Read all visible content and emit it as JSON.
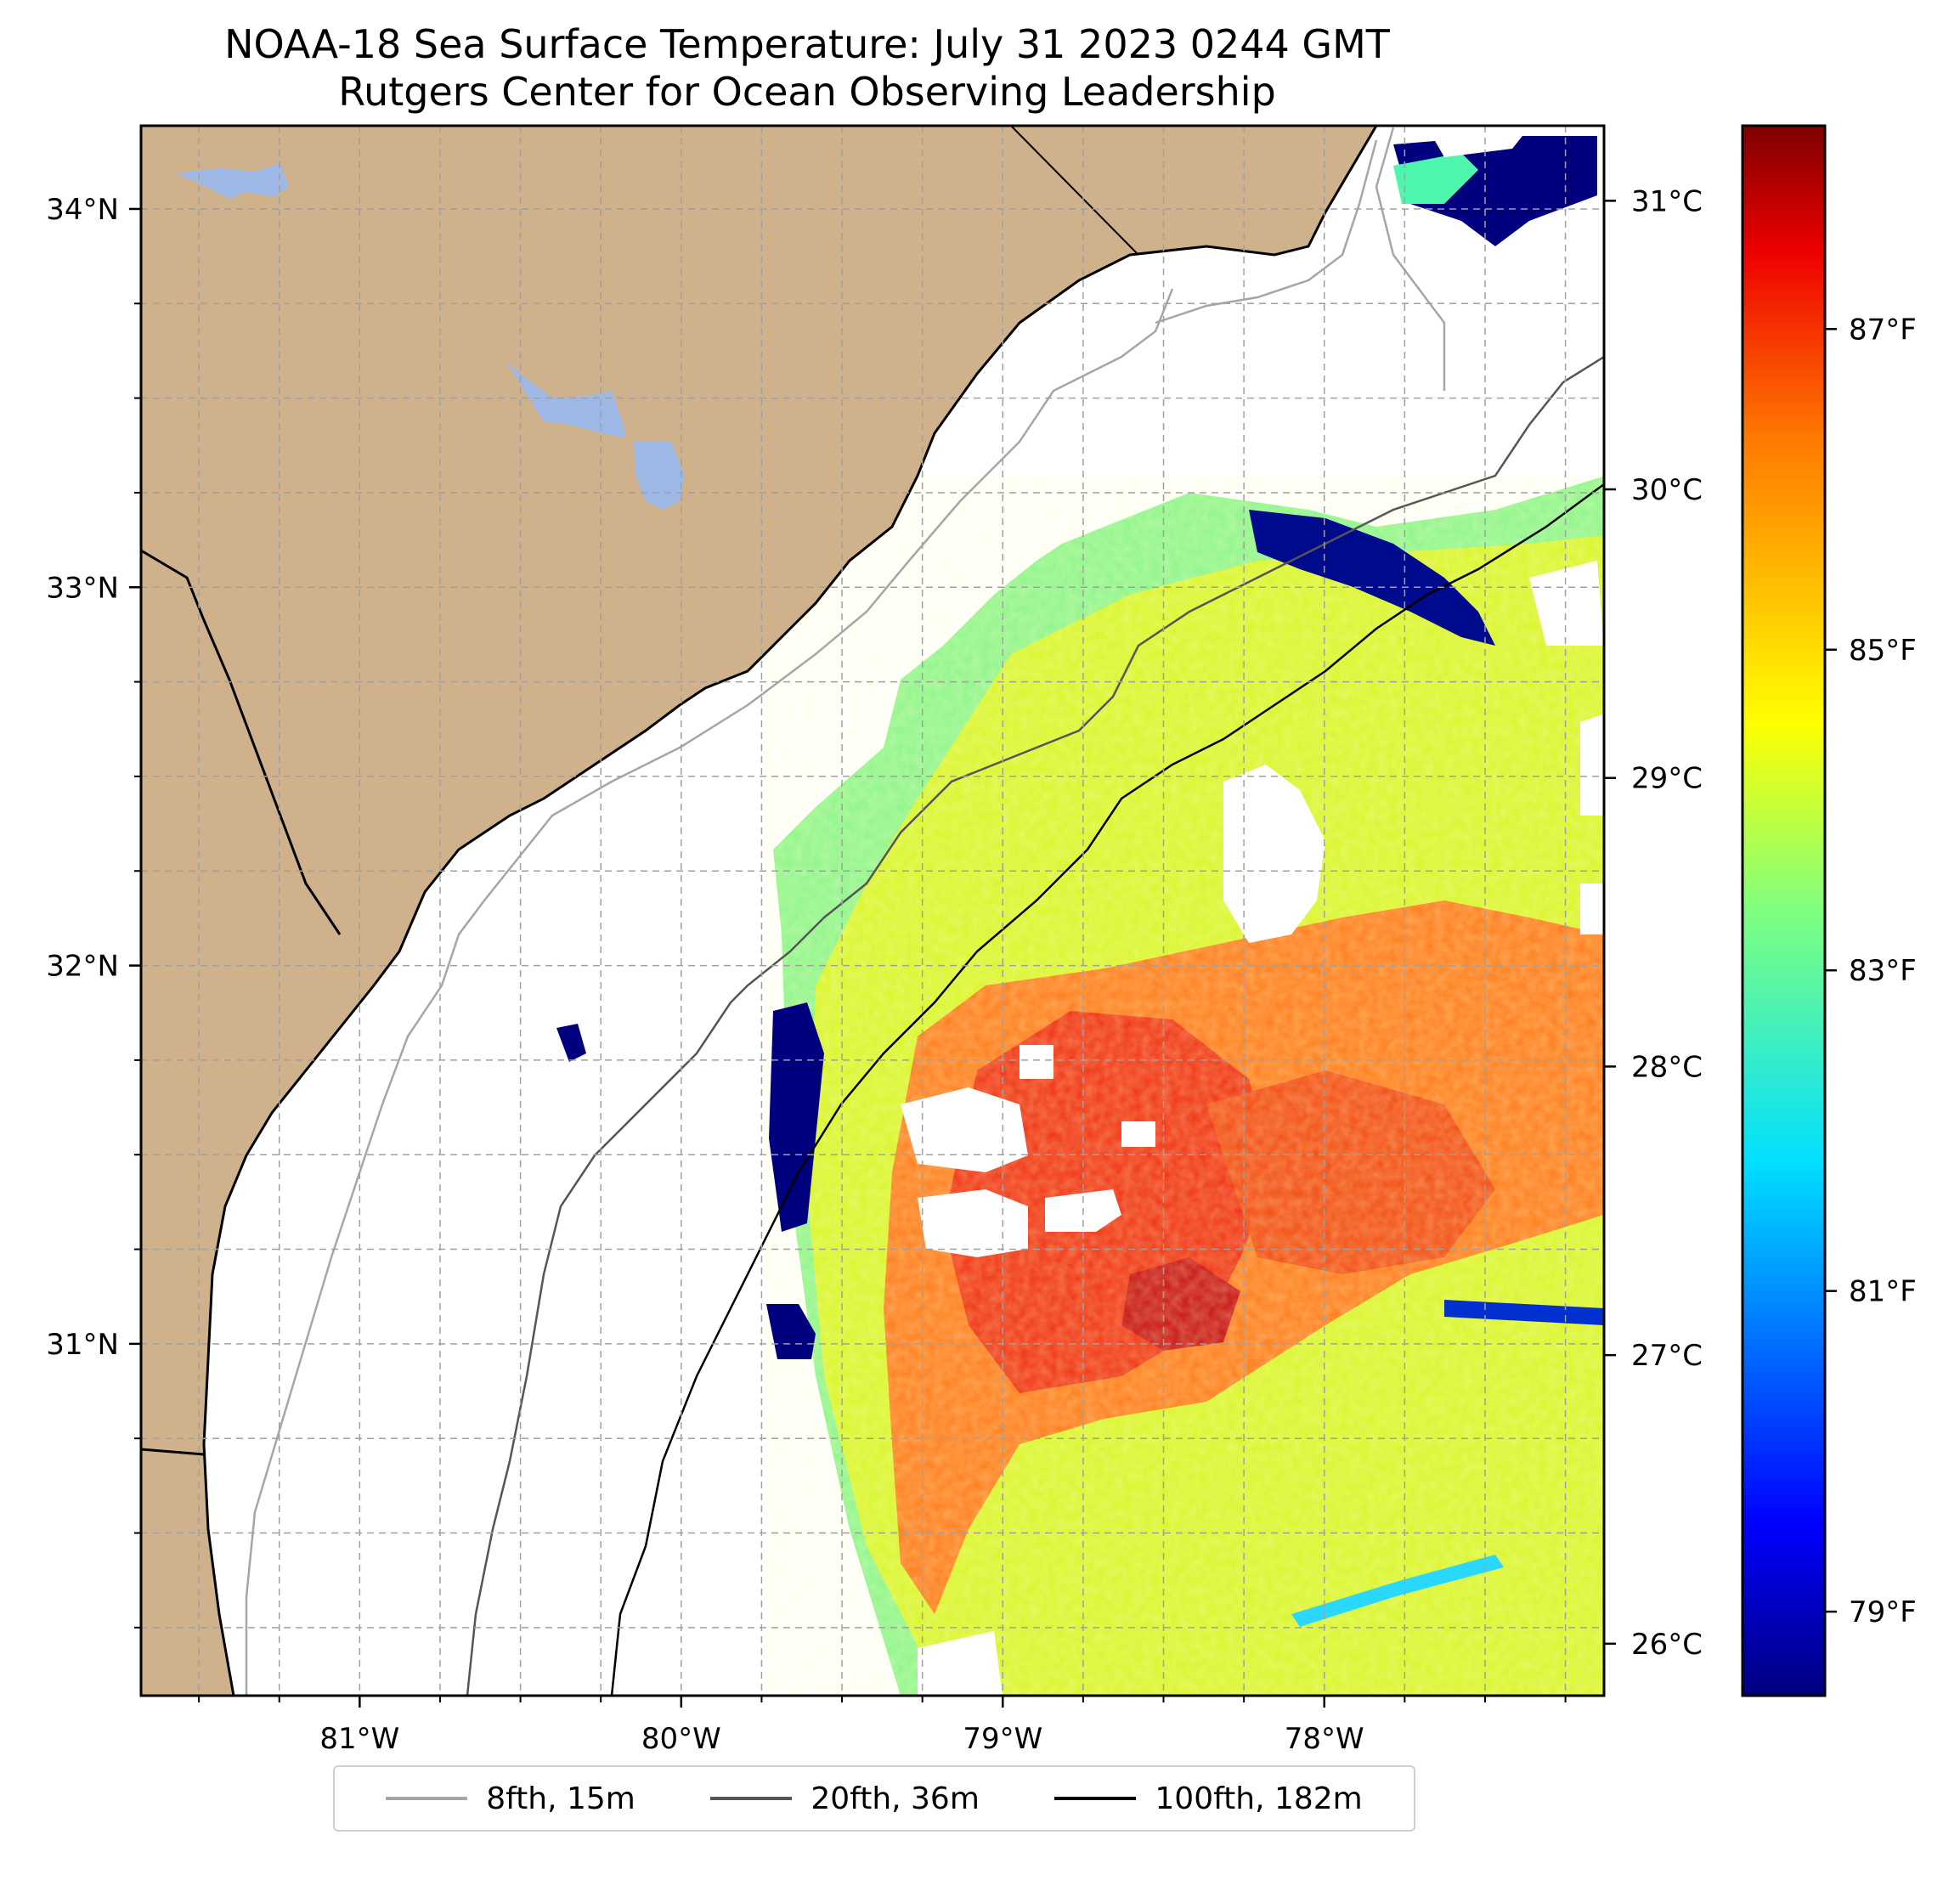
{
  "title": "NOAA-18 Sea Surface Temperature: July 31 2023 0244 GMT",
  "subtitle": "Rutgers Center for Ocean Observing Leadership",
  "map": {
    "lon_range": [
      -81.68,
      -77.13
    ],
    "lat_range": [
      30.07,
      34.22
    ],
    "lon_ticks": [
      {
        "value": -81,
        "label": "81°W"
      },
      {
        "value": -80,
        "label": "80°W"
      },
      {
        "value": -79,
        "label": "79°W"
      },
      {
        "value": -78,
        "label": "78°W"
      }
    ],
    "lat_ticks": [
      {
        "value": 31,
        "label": "31°N"
      },
      {
        "value": 32,
        "label": "32°N"
      },
      {
        "value": 33,
        "label": "33°N"
      },
      {
        "value": 34,
        "label": "34°N"
      }
    ],
    "gridlines": true,
    "land_color": "#cfb28c",
    "lake_color": "#9db8e4"
  },
  "colorbar": {
    "colormap": "jet",
    "celsius_ticks": [
      "26°C",
      "27°C",
      "28°C",
      "29°C",
      "30°C",
      "31°C"
    ],
    "fahrenheit_ticks": [
      "79°F",
      "81°F",
      "83°F",
      "85°F",
      "87°F"
    ]
  },
  "legend": {
    "placement": "bottom-center",
    "entries": [
      {
        "label": "8fth, 15m",
        "color": "#a6a6a6"
      },
      {
        "label": "20fth, 36m",
        "color": "#555555"
      },
      {
        "label": "100fth, 182m",
        "color": "#000000"
      }
    ]
  }
}
